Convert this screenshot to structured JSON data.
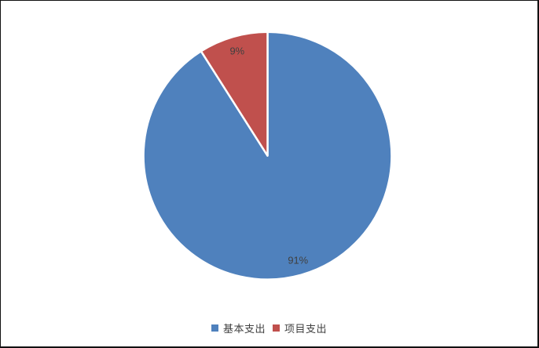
{
  "chart_data": {
    "type": "pie",
    "title": "",
    "categories": [
      "基本支出",
      "项目支出"
    ],
    "values": [
      91,
      9
    ],
    "slice_labels": [
      "91%",
      "9%"
    ],
    "colors": [
      "#4F81BD",
      "#C0504D"
    ],
    "slice_border_color": "#FFFFFF",
    "label_color": "#404040",
    "legend_position": "bottom",
    "start_angle_deg": 0,
    "direction": "clockwise",
    "background_color": "#FFFFFF",
    "frame_border_color": "#111111"
  }
}
